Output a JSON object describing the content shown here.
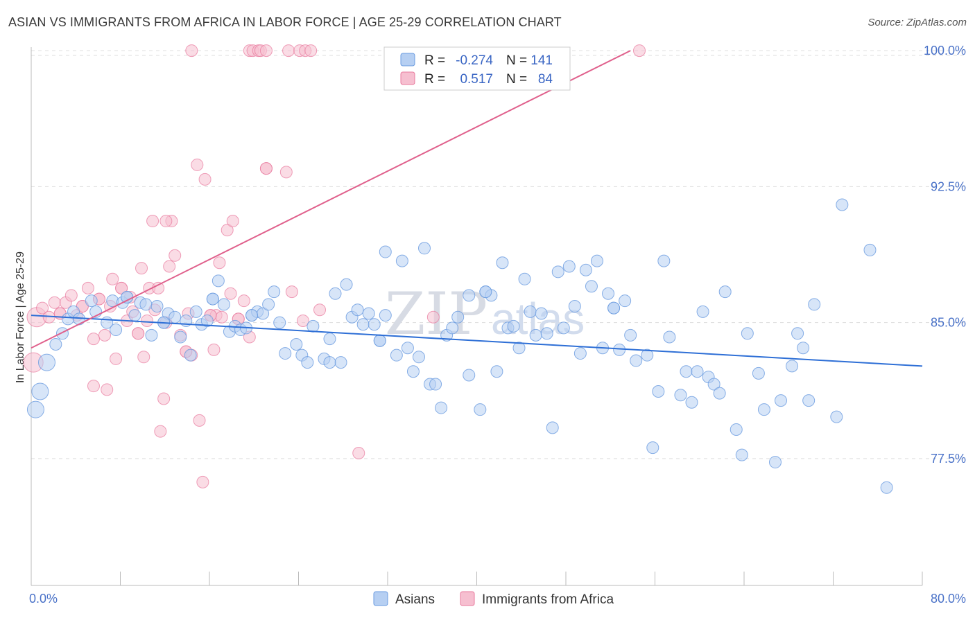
{
  "title": "ASIAN VS IMMIGRANTS FROM AFRICA IN LABOR FORCE | AGE 25-29 CORRELATION CHART",
  "source": "Source: ZipAtlas.com",
  "watermark": {
    "zip": "ZIP",
    "atlas": "atlas"
  },
  "colors": {
    "asian": "#6a9be0",
    "asian_fill": "#b6cff2",
    "africa": "#e8789c",
    "africa_fill": "#f6bfd0",
    "asian_line": "#2e6fd6",
    "africa_line": "#e0608c",
    "grid": "#dddddd",
    "axis_text": "#4a72c8"
  },
  "legend": {
    "rows": [
      {
        "r_label": "R =",
        "r_value": "-0.274",
        "n_label": "N =",
        "n_value": "141"
      },
      {
        "r_label": "R =",
        "r_value": "0.517",
        "n_label": "N =",
        "n_value": "84"
      }
    ]
  },
  "bottom_legend": {
    "asian": "Asians",
    "africa": "Immigrants from Africa"
  },
  "chart_data": {
    "type": "scatter",
    "title": "ASIAN VS IMMIGRANTS FROM AFRICA IN LABOR FORCE | AGE 25-29 CORRELATION CHART",
    "xlabel": "",
    "ylabel": "In Labor Force | Age 25-29",
    "xlim": [
      0,
      80
    ],
    "ylim": [
      70.5,
      100.5
    ],
    "x_tick_labels": [
      "0.0%",
      "80.0%"
    ],
    "y_ticks": [
      77.5,
      85.0,
      92.5,
      100.0
    ],
    "y_tick_labels": [
      "77.5%",
      "85.0%",
      "92.5%",
      "100.0%"
    ],
    "grid": true,
    "legend_position": "top-center",
    "series": [
      {
        "name": "Asians",
        "r": -0.274,
        "n": 141,
        "trend": {
          "x": [
            0,
            80
          ],
          "y": [
            85.4,
            82.6
          ]
        },
        "points": [
          [
            0.4,
            80.2
          ],
          [
            0.8,
            81.2
          ],
          [
            1.4,
            82.8
          ],
          [
            2.2,
            83.8
          ],
          [
            2.8,
            84.4
          ],
          [
            3.3,
            85.2
          ],
          [
            3.8,
            85.6
          ],
          [
            4.3,
            85.2
          ],
          [
            5.4,
            86.2
          ],
          [
            5.8,
            85.6
          ],
          [
            6.8,
            85.0
          ],
          [
            7.3,
            86.2
          ],
          [
            7.6,
            84.6
          ],
          [
            8.2,
            86.1
          ],
          [
            8.6,
            86.4
          ],
          [
            9.3,
            85.4
          ],
          [
            9.8,
            86.1
          ],
          [
            10.3,
            86.0
          ],
          [
            10.8,
            84.3
          ],
          [
            11.3,
            85.9
          ],
          [
            11.9,
            85.0
          ],
          [
            12.3,
            85.5
          ],
          [
            12.9,
            85.3
          ],
          [
            13.4,
            84.2
          ],
          [
            13.9,
            85.1
          ],
          [
            14.3,
            83.2
          ],
          [
            14.8,
            85.6
          ],
          [
            15.3,
            84.9
          ],
          [
            15.8,
            85.1
          ],
          [
            16.3,
            86.3
          ],
          [
            16.8,
            87.3
          ],
          [
            17.3,
            86.0
          ],
          [
            17.8,
            84.5
          ],
          [
            18.3,
            84.8
          ],
          [
            18.8,
            84.6
          ],
          [
            19.3,
            84.7
          ],
          [
            19.8,
            85.4
          ],
          [
            20.3,
            85.6
          ],
          [
            20.8,
            85.5
          ],
          [
            21.3,
            86.0
          ],
          [
            21.8,
            86.7
          ],
          [
            22.3,
            85.0
          ],
          [
            22.8,
            83.3
          ],
          [
            23.8,
            83.8
          ],
          [
            24.3,
            83.2
          ],
          [
            24.8,
            82.8
          ],
          [
            25.3,
            84.8
          ],
          [
            26.3,
            83.0
          ],
          [
            26.8,
            84.1
          ],
          [
            27.3,
            86.6
          ],
          [
            27.8,
            82.8
          ],
          [
            28.3,
            87.1
          ],
          [
            28.8,
            85.3
          ],
          [
            29.3,
            85.7
          ],
          [
            29.8,
            84.9
          ],
          [
            30.3,
            85.5
          ],
          [
            30.8,
            84.9
          ],
          [
            31.3,
            84.0
          ],
          [
            31.8,
            85.4
          ],
          [
            31.8,
            88.9
          ],
          [
            32.8,
            83.2
          ],
          [
            33.3,
            88.4
          ],
          [
            33.8,
            83.6
          ],
          [
            34.3,
            82.3
          ],
          [
            34.8,
            83.1
          ],
          [
            35.3,
            89.1
          ],
          [
            35.8,
            81.6
          ],
          [
            36.3,
            81.6
          ],
          [
            36.8,
            80.3
          ],
          [
            37.3,
            84.3
          ],
          [
            37.8,
            84.7
          ],
          [
            38.3,
            85.3
          ],
          [
            39.3,
            86.5
          ],
          [
            39.3,
            82.1
          ],
          [
            40.3,
            80.2
          ],
          [
            40.8,
            86.7
          ],
          [
            41.3,
            86.5
          ],
          [
            41.8,
            82.3
          ],
          [
            42.3,
            88.3
          ],
          [
            42.8,
            84.7
          ],
          [
            43.3,
            84.8
          ],
          [
            43.8,
            83.6
          ],
          [
            44.3,
            87.4
          ],
          [
            44.8,
            85.6
          ],
          [
            45.3,
            84.3
          ],
          [
            45.8,
            85.5
          ],
          [
            46.3,
            84.4
          ],
          [
            46.8,
            79.2
          ],
          [
            47.3,
            87.8
          ],
          [
            47.8,
            84.7
          ],
          [
            48.3,
            88.1
          ],
          [
            48.8,
            85.9
          ],
          [
            49.3,
            83.3
          ],
          [
            49.8,
            87.9
          ],
          [
            50.3,
            87.0
          ],
          [
            50.8,
            88.4
          ],
          [
            51.3,
            83.6
          ],
          [
            51.8,
            86.6
          ],
          [
            52.3,
            85.8
          ],
          [
            52.8,
            83.5
          ],
          [
            53.3,
            86.2
          ],
          [
            53.8,
            84.3
          ],
          [
            54.3,
            82.9
          ],
          [
            55.3,
            83.2
          ],
          [
            55.8,
            78.1
          ],
          [
            56.3,
            81.2
          ],
          [
            56.8,
            88.4
          ],
          [
            57.3,
            84.2
          ],
          [
            58.3,
            81.0
          ],
          [
            58.8,
            82.3
          ],
          [
            59.3,
            80.6
          ],
          [
            59.8,
            82.3
          ],
          [
            60.3,
            85.6
          ],
          [
            60.8,
            82.0
          ],
          [
            61.3,
            81.6
          ],
          [
            61.8,
            81.1
          ],
          [
            62.3,
            86.7
          ],
          [
            63.3,
            79.1
          ],
          [
            63.8,
            77.7
          ],
          [
            64.3,
            84.4
          ],
          [
            65.3,
            82.2
          ],
          [
            65.8,
            80.2
          ],
          [
            66.8,
            77.3
          ],
          [
            67.3,
            80.7
          ],
          [
            68.3,
            82.6
          ],
          [
            68.8,
            84.4
          ],
          [
            69.3,
            83.6
          ],
          [
            69.8,
            80.7
          ],
          [
            70.3,
            86.0
          ],
          [
            72.3,
            79.8
          ],
          [
            72.8,
            91.5
          ],
          [
            75.3,
            89.0
          ],
          [
            76.8,
            75.9
          ],
          [
            16.3,
            86.3
          ],
          [
            26.8,
            82.8
          ],
          [
            31.3,
            84.0
          ],
          [
            40.8,
            86.7
          ],
          [
            52.3,
            85.8
          ],
          [
            19.8,
            85.4
          ],
          [
            11.9,
            85.0
          ],
          [
            8.6,
            86.4
          ]
        ]
      },
      {
        "name": "Immigrants from Africa",
        "r": 0.517,
        "n": 84,
        "trend": {
          "x": [
            0,
            53.8
          ],
          "y": [
            83.6,
            100.0
          ]
        },
        "points": [
          [
            0.2,
            82.8
          ],
          [
            0.5,
            85.3
          ],
          [
            1.0,
            85.8
          ],
          [
            1.6,
            85.3
          ],
          [
            2.1,
            86.1
          ],
          [
            2.6,
            85.5
          ],
          [
            3.1,
            86.1
          ],
          [
            3.6,
            86.5
          ],
          [
            4.1,
            85.4
          ],
          [
            4.6,
            85.9
          ],
          [
            5.1,
            86.9
          ],
          [
            5.6,
            84.1
          ],
          [
            5.6,
            81.5
          ],
          [
            6.1,
            86.3
          ],
          [
            6.6,
            84.3
          ],
          [
            6.8,
            81.3
          ],
          [
            7.1,
            85.9
          ],
          [
            7.3,
            87.4
          ],
          [
            7.6,
            83.0
          ],
          [
            8.1,
            86.9
          ],
          [
            8.6,
            85.1
          ],
          [
            8.9,
            86.4
          ],
          [
            9.1,
            85.6
          ],
          [
            9.6,
            84.4
          ],
          [
            9.9,
            88.0
          ],
          [
            10.1,
            83.1
          ],
          [
            10.4,
            85.1
          ],
          [
            10.6,
            86.9
          ],
          [
            10.9,
            90.6
          ],
          [
            11.1,
            85.7
          ],
          [
            11.4,
            86.9
          ],
          [
            11.6,
            79.0
          ],
          [
            11.9,
            80.8
          ],
          [
            12.1,
            85.0
          ],
          [
            12.4,
            88.1
          ],
          [
            12.6,
            90.6
          ],
          [
            12.9,
            88.7
          ],
          [
            13.4,
            84.3
          ],
          [
            13.9,
            83.4
          ],
          [
            14.1,
            85.5
          ],
          [
            14.4,
            83.2
          ],
          [
            14.9,
            93.7
          ],
          [
            15.1,
            79.6
          ],
          [
            15.4,
            76.2
          ],
          [
            15.6,
            92.9
          ],
          [
            16.1,
            85.4
          ],
          [
            16.4,
            83.5
          ],
          [
            16.6,
            85.4
          ],
          [
            16.9,
            88.3
          ],
          [
            17.1,
            85.3
          ],
          [
            17.6,
            90.1
          ],
          [
            17.9,
            86.6
          ],
          [
            18.1,
            90.6
          ],
          [
            18.6,
            85.2
          ],
          [
            19.1,
            86.2
          ],
          [
            19.6,
            84.2
          ],
          [
            21.1,
            93.5
          ],
          [
            22.9,
            93.3
          ],
          [
            23.4,
            86.7
          ],
          [
            24.4,
            85.1
          ],
          [
            25.9,
            85.7
          ],
          [
            29.4,
            77.8
          ],
          [
            36.1,
            85.3
          ],
          [
            14.4,
            100.0
          ],
          [
            19.6,
            100.0
          ],
          [
            19.9,
            100.0
          ],
          [
            20.4,
            100.0
          ],
          [
            20.6,
            100.0
          ],
          [
            21.1,
            100.0
          ],
          [
            23.1,
            100.0
          ],
          [
            24.1,
            100.0
          ],
          [
            24.6,
            100.0
          ],
          [
            25.1,
            100.0
          ],
          [
            54.6,
            100.0
          ],
          [
            12.1,
            90.6
          ],
          [
            2.6,
            85.5
          ],
          [
            4.6,
            85.9
          ],
          [
            8.1,
            86.9
          ],
          [
            16.1,
            85.4
          ],
          [
            9.6,
            84.4
          ],
          [
            6.1,
            86.3
          ],
          [
            18.6,
            85.2
          ],
          [
            13.9,
            83.4
          ],
          [
            21.1,
            93.5
          ]
        ]
      }
    ]
  }
}
